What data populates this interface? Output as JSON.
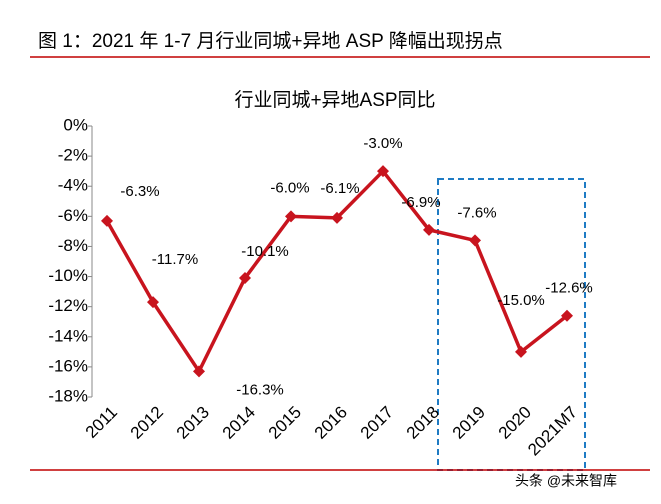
{
  "header": {
    "title": "图 1：2021 年 1-7 月行业同城+异地 ASP 降幅出现拐点"
  },
  "chart_data": {
    "type": "line",
    "title": "行业同城+异地ASP同比",
    "categories": [
      "2011",
      "2012",
      "2013",
      "2014",
      "2015",
      "2016",
      "2017",
      "2018",
      "2019",
      "2020",
      "2021M7"
    ],
    "series": [
      {
        "name": "行业同城+异地ASP同比",
        "color": "#c8141e",
        "values": [
          -6.3,
          -11.7,
          -16.3,
          -10.1,
          -6.0,
          -6.1,
          -3.0,
          -6.9,
          -7.6,
          -15.0,
          -12.6
        ],
        "value_labels": [
          "-6.3%",
          "-11.7%",
          "-16.3%",
          "-10.1%",
          "-6.0%",
          "-6.1%",
          "-3.0%",
          "-6.9%",
          "-7.6%",
          "-15.0%",
          "-12.6%"
        ]
      }
    ],
    "ylim": [
      -18,
      0
    ],
    "yticks": [
      {
        "value": 0,
        "label": "0%"
      },
      {
        "value": -2,
        "label": "-2%"
      },
      {
        "value": -4,
        "label": "-4%"
      },
      {
        "value": -6,
        "label": "-6%"
      },
      {
        "value": -8,
        "label": "-8%"
      },
      {
        "value": -10,
        "label": "-10%"
      },
      {
        "value": -12,
        "label": "-12%"
      },
      {
        "value": -14,
        "label": "-14%"
      },
      {
        "value": -16,
        "label": "-16%"
      },
      {
        "value": -18,
        "label": "-18%"
      }
    ],
    "grid": false
  },
  "watermark": "头条 @未来智库"
}
